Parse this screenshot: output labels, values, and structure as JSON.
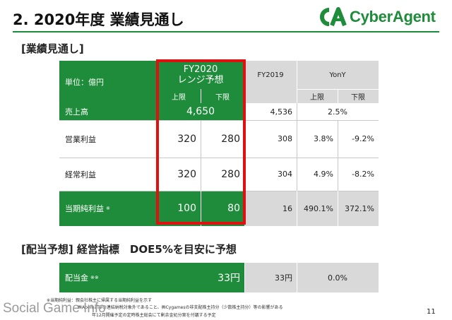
{
  "header": {
    "title": "2. 2020年度 業績見通し",
    "logo_text": "CyberAgent",
    "logo_mark": "CA-logo-icon"
  },
  "section1": {
    "label": "[業績見通し]",
    "table": {
      "unit_label": "単位：億円",
      "fy2020_title": "FY2020",
      "fy2020_subtitle": "レンジ予想",
      "fy2019_title": "FY2019",
      "yony_title": "YonY",
      "upper_label": "上限",
      "lower_label": "下限",
      "rows": [
        {
          "label": "売上高",
          "fy2020_merged": "4,650",
          "fy2019": "4,536",
          "yony_merged": "2.5%"
        },
        {
          "label": "営業利益",
          "upper": "320",
          "lower": "280",
          "fy2019": "308",
          "yony_upper": "3.8%",
          "yony_lower": "-9.2%"
        },
        {
          "label": "経常利益",
          "upper": "320",
          "lower": "280",
          "fy2019": "304",
          "yony_upper": "4.9%",
          "yony_lower": "-8.2%"
        },
        {
          "label": "当期純利益",
          "label_mark": "※",
          "upper": "100",
          "lower": "80",
          "fy2019": "16",
          "yony_upper": "490.1%",
          "yony_lower": "372.1%"
        }
      ]
    }
  },
  "section2": {
    "label": "[配当予想] 経営指標　DOE5%を目安に予想",
    "row": {
      "label": "配当金",
      "label_mark": "※※",
      "fy2020": "33円",
      "fy2019": "33円",
      "yony": "0.0%"
    }
  },
  "notes": [
    "※当期純利益：親会社株主に帰属する当期純利益を示す",
    "㈱AbemaTVの連結納税対象外であること、㈱Cygamesの非支配株主持分（少数株主持分）等の影響がある",
    "年12月開催予定の定時株主総会にて剰余金処分案を付議する予定"
  ],
  "watermark": "Social Game Info",
  "page_number": "11",
  "colors": {
    "brand_green": "#1e8c3a",
    "highlight_red": "#e01010",
    "gray_cell": "#d9d9d9"
  }
}
